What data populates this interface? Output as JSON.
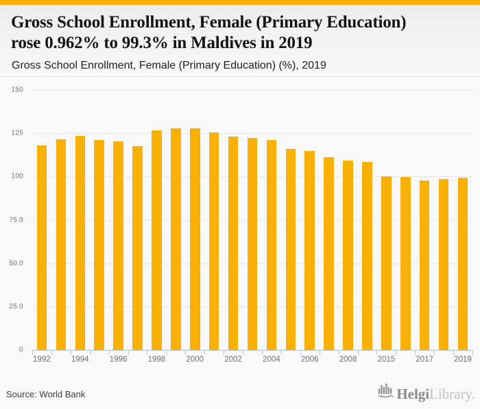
{
  "header": {
    "title_line1": "Gross School Enrollment, Female (Primary Education)",
    "title_line2": "rose 0.962% to 99.3% in Maldives in 2019",
    "subtitle": "Gross School Enrollment, Female (Primary Education) (%), 2019"
  },
  "chart_data": {
    "type": "bar",
    "title": "Gross School Enrollment, Female (Primary Education) (%), 2019",
    "xlabel": "",
    "ylabel": "",
    "ylim": [
      0,
      150
    ],
    "grid": true,
    "legend": "none",
    "bar_color": "#F9B007",
    "categories": [
      "1992",
      "1993",
      "1994",
      "1995",
      "1996",
      "1997",
      "1998",
      "1999",
      "2000",
      "2001",
      "2002",
      "2003",
      "2004",
      "2005",
      "2006",
      "2007",
      "2008",
      "2009",
      "2015",
      "2016",
      "2017",
      "2018",
      "2019"
    ],
    "values": [
      118.0,
      121.5,
      123.5,
      121.0,
      120.5,
      117.5,
      126.5,
      127.7,
      127.7,
      125.5,
      123.0,
      122.2,
      121.3,
      115.8,
      114.7,
      111.2,
      109.2,
      108.3,
      100.1,
      99.7,
      97.9,
      98.4,
      99.3
    ],
    "y_ticks": [
      {
        "label": "150",
        "value": 150
      },
      {
        "label": "125",
        "value": 125
      },
      {
        "label": "100",
        "value": 100
      },
      {
        "label": "75.0",
        "value": 75
      },
      {
        "label": "50.0",
        "value": 50
      },
      {
        "label": "25.0",
        "value": 25
      },
      {
        "label": "0",
        "value": 0
      }
    ],
    "x_tick_labels": [
      "1992",
      "1994",
      "1996",
      "1998",
      "2000",
      "2002",
      "2004",
      "2006",
      "2008",
      "2015",
      "2017",
      "2019"
    ]
  },
  "footer": {
    "source": "Source: World Bank",
    "logo": {
      "icon": "bar-chart-skyline-icon",
      "text_primary": "Helgi",
      "text_secondary": "Library."
    }
  },
  "colors": {
    "accent": "#F9B007",
    "bar": "#F9B007",
    "axis": "#B5C1D8",
    "grid": "#E4E4E4",
    "tick_text": "#6F6F6F",
    "title_text": "#141414",
    "source_text": "#3D3D3D",
    "logo_primary": "#8A8A8A",
    "logo_secondary": "#C2C2C2",
    "chart_bg": "#F9F9F9"
  }
}
